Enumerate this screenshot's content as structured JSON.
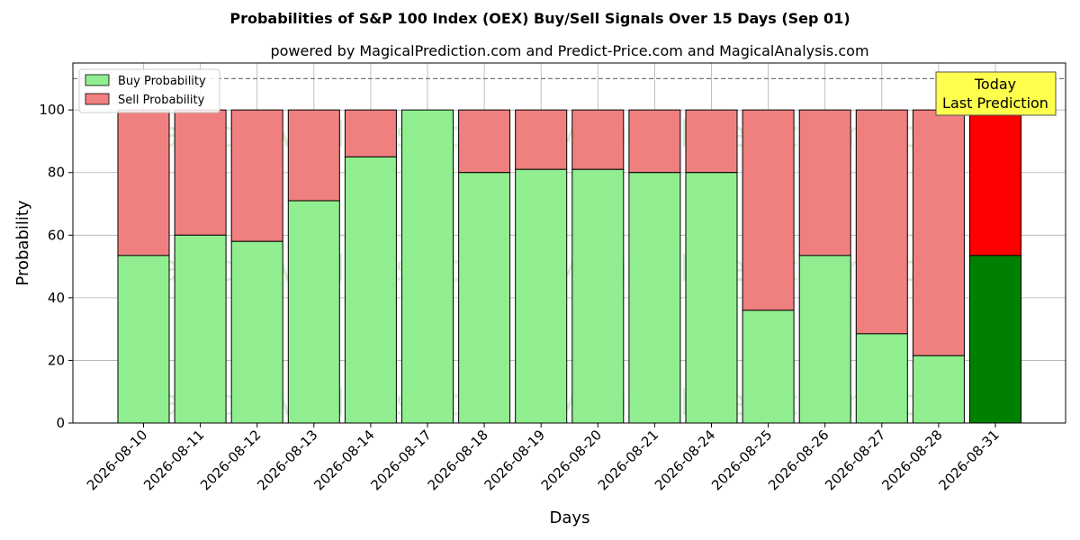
{
  "chart_data": {
    "type": "bar",
    "stacked": true,
    "title": "Probabilities of S&P 100 Index (OEX) Buy/Sell Signals Over 15 Days (Sep 01)",
    "subtitle": "powered by MagicalPrediction.com and Predict-Price.com and MagicalAnalysis.com",
    "xlabel": "Days",
    "ylabel": "Probability",
    "ylim": [
      0,
      115
    ],
    "yticks": [
      0,
      20,
      40,
      60,
      80,
      100
    ],
    "grid": true,
    "legend_position": "top-left",
    "reference_line": 110,
    "categories": [
      "2026-08-10",
      "2026-08-11",
      "2026-08-12",
      "2026-08-13",
      "2026-08-14",
      "2026-08-17",
      "2026-08-18",
      "2026-08-19",
      "2026-08-20",
      "2026-08-21",
      "2026-08-24",
      "2026-08-25",
      "2026-08-26",
      "2026-08-27",
      "2026-08-28",
      "2026-08-31"
    ],
    "series": [
      {
        "name": "Buy Probability",
        "color": "#90ee90",
        "highlight_color": "#008000",
        "values": [
          53.5,
          60,
          58,
          71,
          85,
          100,
          80,
          81,
          81,
          80,
          80,
          36,
          53.5,
          28.5,
          21.5,
          53.5
        ]
      },
      {
        "name": "Sell Probability",
        "color": "#f08080",
        "highlight_color": "#ff0000",
        "values": [
          46.5,
          40,
          42,
          29,
          15,
          0,
          20,
          19,
          19,
          20,
          20,
          64,
          46.5,
          71.5,
          78.5,
          46.5
        ]
      }
    ],
    "highlight_index": 15,
    "annotation": {
      "line1": "Today",
      "line2": "Last Prediction",
      "background": "#ffff4d"
    },
    "watermarks": [
      "MagicalAnalysis.com",
      "MagicalPrediction.com"
    ]
  }
}
